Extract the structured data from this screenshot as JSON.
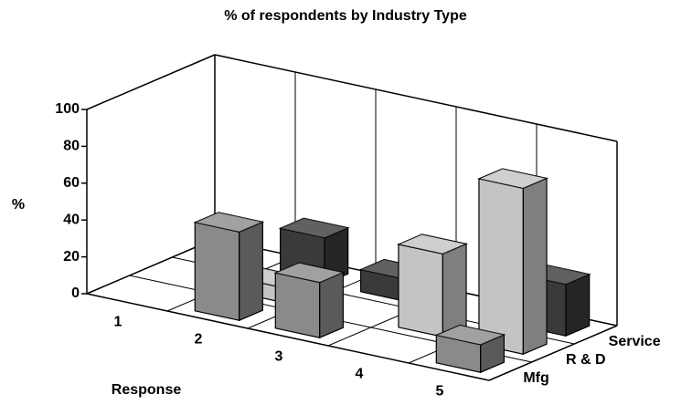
{
  "chart_data": {
    "type": "bar3d",
    "title": "% of respondents by Industry Type",
    "y_label": "%",
    "x_label": "Response",
    "categories": [
      "1",
      "2",
      "3",
      "4",
      "5"
    ],
    "series": [
      {
        "name": "Mfg",
        "color": "#8a8a8a",
        "values": [
          0,
          48,
          30,
          0,
          15
        ]
      },
      {
        "name": "R & D",
        "color": "#c4c4c4",
        "values": [
          0,
          8,
          0,
          45,
          90
        ]
      },
      {
        "name": "Service",
        "color": "#3a3a3a",
        "values": [
          0,
          25,
          12,
          0,
          28
        ]
      }
    ],
    "ylim": [
      0,
      100
    ],
    "yticks": [
      0,
      20,
      40,
      60,
      80,
      100
    ],
    "grid": true
  }
}
